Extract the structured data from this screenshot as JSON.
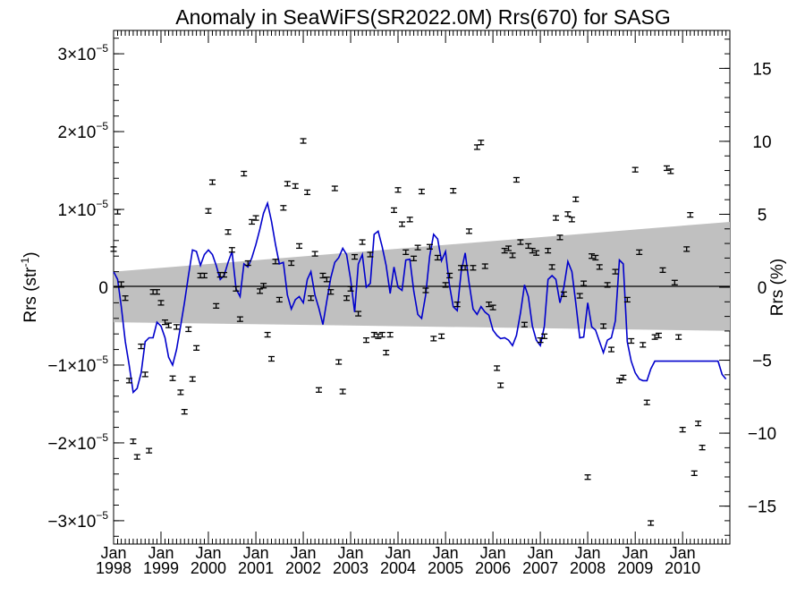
{
  "chart_data": {
    "type": "scatter",
    "title": "Anomaly in SeaWiFS(SR2022.0M) Rrs(670) for SASG",
    "ylabel": "Rrs (str",
    "ylabel_sup": "-1",
    "ylabel_close": ")",
    "y2label": "Rrs (%)",
    "xlim": [
      "1998-01-01",
      "2010-12-31"
    ],
    "ylim": [
      -3.3e-05,
      3.3e-05
    ],
    "y2lim": [
      -17.6,
      17.6
    ],
    "grid": false,
    "legend": "none",
    "colors": {
      "series_line": "#0000cc",
      "points": "#000000",
      "band": "#c0c0c0",
      "zero_line": "#000000"
    },
    "x_ticks": [
      {
        "month": "Jan",
        "year": "1998"
      },
      {
        "month": "Jan",
        "year": "1999"
      },
      {
        "month": "Jan",
        "year": "2000"
      },
      {
        "month": "Jan",
        "year": "2001"
      },
      {
        "month": "Jan",
        "year": "2002"
      },
      {
        "month": "Jan",
        "year": "2003"
      },
      {
        "month": "Jan",
        "year": "2004"
      },
      {
        "month": "Jan",
        "year": "2005"
      },
      {
        "month": "Jan",
        "year": "2006"
      },
      {
        "month": "Jan",
        "year": "2007"
      },
      {
        "month": "Jan",
        "year": "2008"
      },
      {
        "month": "Jan",
        "year": "2009"
      },
      {
        "month": "Jan",
        "year": "2010"
      }
    ],
    "y_ticks": [
      {
        "value": -3e-05,
        "mant": "−3×10",
        "exp": "−5"
      },
      {
        "value": -2e-05,
        "mant": "−2×10",
        "exp": "−5"
      },
      {
        "value": -1e-05,
        "mant": "−1×10",
        "exp": "−5"
      },
      {
        "value": 0,
        "mant": "0",
        "exp": ""
      },
      {
        "value": 1e-05,
        "mant": "1×10",
        "exp": "−5"
      },
      {
        "value": 2e-05,
        "mant": "2×10",
        "exp": "−5"
      },
      {
        "value": 3e-05,
        "mant": "3×10",
        "exp": "−5"
      }
    ],
    "y2_ticks": [
      {
        "value": -15,
        "label": "−15"
      },
      {
        "value": -10,
        "label": "−10"
      },
      {
        "value": -5,
        "label": "−5"
      },
      {
        "value": 0,
        "label": "0"
      },
      {
        "value": 5,
        "label": "5"
      },
      {
        "value": 10,
        "label": "10"
      },
      {
        "value": 15,
        "label": "15"
      }
    ],
    "band": {
      "x": [
        "1998-01-01",
        "2010-12-31"
      ],
      "upper": [
        2e-06,
        8.4e-06
      ],
      "lower": [
        -4.5e-06,
        -5.6e-06
      ]
    },
    "points": [
      {
        "x": "1998-01-01",
        "y": 4.9e-06
      },
      {
        "x": "1998-02-01",
        "y": 9.7e-06
      },
      {
        "x": "1998-03-01",
        "y": 4e-07
      },
      {
        "x": "1998-04-01",
        "y": -1.4e-06
      },
      {
        "x": "1998-05-01",
        "y": -1.2e-05
      },
      {
        "x": "1998-06-01",
        "y": -1.98e-05
      },
      {
        "x": "1998-07-01",
        "y": -2.18e-05
      },
      {
        "x": "1998-08-01",
        "y": -7.6e-06
      },
      {
        "x": "1998-09-01",
        "y": -1.12e-05
      },
      {
        "x": "1998-10-01",
        "y": -2.1e-05
      },
      {
        "x": "1998-11-01",
        "y": -6e-07
      },
      {
        "x": "1998-12-01",
        "y": -6e-07
      },
      {
        "x": "1999-01-01",
        "y": -2e-06
      },
      {
        "x": "1999-02-01",
        "y": -4.5e-06
      },
      {
        "x": "1999-03-01",
        "y": -4.9e-06
      },
      {
        "x": "1999-04-01",
        "y": -1.17e-05
      },
      {
        "x": "1999-05-01",
        "y": -5.1e-06
      },
      {
        "x": "1999-06-01",
        "y": -1.35e-05
      },
      {
        "x": "1999-07-01",
        "y": -1.6e-05
      },
      {
        "x": "1999-08-01",
        "y": -5.4e-06
      },
      {
        "x": "1999-09-01",
        "y": -1.18e-05
      },
      {
        "x": "1999-10-01",
        "y": -7.8e-06
      },
      {
        "x": "1999-11-01",
        "y": 1.5e-06
      },
      {
        "x": "1999-12-01",
        "y": 1.5e-06
      },
      {
        "x": "2000-01-01",
        "y": 9.8e-06
      },
      {
        "x": "2000-02-01",
        "y": 1.35e-05
      },
      {
        "x": "2000-03-01",
        "y": -2.4e-06
      },
      {
        "x": "2000-04-01",
        "y": 1.6e-06
      },
      {
        "x": "2000-05-01",
        "y": 1.6e-06
      },
      {
        "x": "2000-06-01",
        "y": 7.1e-06
      },
      {
        "x": "2000-07-01",
        "y": 4.8e-06
      },
      {
        "x": "2000-08-01",
        "y": -2e-07
      },
      {
        "x": "2000-09-01",
        "y": -4.1e-06
      },
      {
        "x": "2000-10-01",
        "y": 1.46e-05
      },
      {
        "x": "2000-11-01",
        "y": 3.1e-06
      },
      {
        "x": "2000-12-01",
        "y": 8.4e-06
      },
      {
        "x": "2001-01-01",
        "y": 8.9e-06
      },
      {
        "x": "2001-02-01",
        "y": -5e-07
      },
      {
        "x": "2001-03-01",
        "y": 2e-07
      },
      {
        "x": "2001-04-01",
        "y": -6.1e-06
      },
      {
        "x": "2001-05-01",
        "y": -9.2e-06
      },
      {
        "x": "2001-06-01",
        "y": 3.3e-06
      },
      {
        "x": "2001-07-01",
        "y": -1.6e-06
      },
      {
        "x": "2001-08-01",
        "y": 1.02e-05
      },
      {
        "x": "2001-09-01",
        "y": 1.33e-05
      },
      {
        "x": "2001-10-01",
        "y": 3.1e-06
      },
      {
        "x": "2001-11-01",
        "y": 1.3e-05
      },
      {
        "x": "2001-12-01",
        "y": 5.3e-06
      },
      {
        "x": "2002-01-01",
        "y": 1.88e-05
      },
      {
        "x": "2002-02-01",
        "y": 1.22e-05
      },
      {
        "x": "2002-03-01",
        "y": -1.4e-06
      },
      {
        "x": "2002-04-01",
        "y": 4.3e-06
      },
      {
        "x": "2002-05-01",
        "y": -1.32e-05
      },
      {
        "x": "2002-06-01",
        "y": 1.5e-06
      },
      {
        "x": "2002-07-01",
        "y": 1e-06
      },
      {
        "x": "2002-08-01",
        "y": -6e-07
      },
      {
        "x": "2002-09-01",
        "y": 1.27e-05
      },
      {
        "x": "2002-10-01",
        "y": -9.6e-06
      },
      {
        "x": "2002-11-01",
        "y": -1.34e-05
      },
      {
        "x": "2002-12-01",
        "y": -1.4e-06
      },
      {
        "x": "2003-01-01",
        "y": -2e-07
      },
      {
        "x": "2003-02-01",
        "y": 3.9e-06
      },
      {
        "x": "2003-03-01",
        "y": -3.4e-06
      },
      {
        "x": "2003-04-01",
        "y": 5.8e-06
      },
      {
        "x": "2003-05-01",
        "y": -6.8e-06
      },
      {
        "x": "2003-06-01",
        "y": 4.2e-06
      },
      {
        "x": "2003-07-01",
        "y": -6.1e-06
      },
      {
        "x": "2003-08-01",
        "y": -6.3e-06
      },
      {
        "x": "2003-09-01",
        "y": -6.1e-06
      },
      {
        "x": "2003-10-01",
        "y": -8.4e-06
      },
      {
        "x": "2003-11-01",
        "y": -6.1e-06
      },
      {
        "x": "2003-12-01",
        "y": 9.9e-06
      },
      {
        "x": "2004-01-01",
        "y": 1.25e-05
      },
      {
        "x": "2004-02-01",
        "y": 8.1e-06
      },
      {
        "x": "2004-03-01",
        "y": 4.5e-06
      },
      {
        "x": "2004-04-01",
        "y": 8.7e-06
      },
      {
        "x": "2004-05-01",
        "y": 3.7e-06
      },
      {
        "x": "2004-06-01",
        "y": 5.1e-06
      },
      {
        "x": "2004-07-01",
        "y": 1.23e-05
      },
      {
        "x": "2004-08-01",
        "y": -4e-07
      },
      {
        "x": "2004-09-01",
        "y": 5.2e-06
      },
      {
        "x": "2004-10-01",
        "y": -6.6e-06
      },
      {
        "x": "2004-11-01",
        "y": 3.8e-06
      },
      {
        "x": "2004-12-01",
        "y": -6.3e-06
      },
      {
        "x": "2005-01-01",
        "y": 3e-07
      },
      {
        "x": "2005-02-01",
        "y": 1.5e-06
      },
      {
        "x": "2005-03-01",
        "y": 1.24e-05
      },
      {
        "x": "2005-04-01",
        "y": -2.2e-06
      },
      {
        "x": "2005-05-01",
        "y": 2.5e-06
      },
      {
        "x": "2005-06-01",
        "y": 2.5e-06
      },
      {
        "x": "2005-07-01",
        "y": 7.2e-06
      },
      {
        "x": "2005-08-01",
        "y": 2.5e-06
      },
      {
        "x": "2005-09-01",
        "y": 1.8e-05
      },
      {
        "x": "2005-10-01",
        "y": 1.86e-05
      },
      {
        "x": "2005-11-01",
        "y": 2.7e-06
      },
      {
        "x": "2005-12-01",
        "y": -2.2e-06
      },
      {
        "x": "2006-01-01",
        "y": -2.6e-06
      },
      {
        "x": "2006-02-01",
        "y": -1.04e-05
      },
      {
        "x": "2006-03-01",
        "y": -1.26e-05
      },
      {
        "x": "2006-04-01",
        "y": 4.7e-06
      },
      {
        "x": "2006-05-01",
        "y": 5e-06
      },
      {
        "x": "2006-06-01",
        "y": 4.1e-06
      },
      {
        "x": "2006-07-01",
        "y": 1.38e-05
      },
      {
        "x": "2006-08-01",
        "y": 5.8e-06
      },
      {
        "x": "2006-09-01",
        "y": -4.8e-06
      },
      {
        "x": "2006-10-01",
        "y": 5.3e-06
      },
      {
        "x": "2006-11-01",
        "y": 4.7e-06
      },
      {
        "x": "2006-12-01",
        "y": 4.4e-06
      },
      {
        "x": "2007-01-01",
        "y": -6.8e-06
      },
      {
        "x": "2007-02-01",
        "y": -6.3e-06
      },
      {
        "x": "2007-03-01",
        "y": 4.7e-06
      },
      {
        "x": "2007-04-01",
        "y": 2.6e-06
      },
      {
        "x": "2007-05-01",
        "y": 8.9e-06
      },
      {
        "x": "2007-06-01",
        "y": 6.4e-06
      },
      {
        "x": "2007-07-01",
        "y": -9e-07
      },
      {
        "x": "2007-08-01",
        "y": 9.4e-06
      },
      {
        "x": "2007-09-01",
        "y": 8.7e-06
      },
      {
        "x": "2007-10-01",
        "y": 1.13e-05
      },
      {
        "x": "2007-11-01",
        "y": -1.1e-06
      },
      {
        "x": "2007-12-01",
        "y": 5e-07
      },
      {
        "x": "2008-01-01",
        "y": -2.44e-05
      },
      {
        "x": "2008-02-01",
        "y": 4e-06
      },
      {
        "x": "2008-03-01",
        "y": 3.8e-06
      },
      {
        "x": "2008-04-01",
        "y": 2.6e-06
      },
      {
        "x": "2008-05-01",
        "y": -5e-06
      },
      {
        "x": "2008-06-01",
        "y": 3e-07
      },
      {
        "x": "2008-07-01",
        "y": -8e-06
      },
      {
        "x": "2008-08-01",
        "y": 2e-06
      },
      {
        "x": "2008-09-01",
        "y": -1.2e-05
      },
      {
        "x": "2008-10-01",
        "y": -1.16e-05
      },
      {
        "x": "2008-11-01",
        "y": -1.6e-06
      },
      {
        "x": "2008-12-01",
        "y": -6.9e-06
      },
      {
        "x": "2009-01-01",
        "y": 1.51e-05
      },
      {
        "x": "2009-02-01",
        "y": 4.5e-06
      },
      {
        "x": "2009-03-01",
        "y": -7.4e-06
      },
      {
        "x": "2009-04-01",
        "y": -1.48e-05
      },
      {
        "x": "2009-05-01",
        "y": -3.03e-05
      },
      {
        "x": "2009-06-01",
        "y": -6.4e-06
      },
      {
        "x": "2009-07-01",
        "y": -6.2e-06
      },
      {
        "x": "2009-08-01",
        "y": 2.2e-06
      },
      {
        "x": "2009-09-01",
        "y": 1.53e-05
      },
      {
        "x": "2009-10-01",
        "y": 1.49e-05
      },
      {
        "x": "2009-11-01",
        "y": 6e-07
      },
      {
        "x": "2009-12-01",
        "y": -6.4e-06
      },
      {
        "x": "2010-01-01",
        "y": -1.83e-05
      },
      {
        "x": "2010-02-01",
        "y": 4.9e-06
      },
      {
        "x": "2010-03-01",
        "y": 9.3e-06
      },
      {
        "x": "2010-04-01",
        "y": -2.39e-05
      },
      {
        "x": "2010-05-01",
        "y": -1.75e-05
      },
      {
        "x": "2010-06-01",
        "y": -2.06e-05
      }
    ],
    "smooth": {
      "x": [
        "1998-01-01",
        "1998-02-01",
        "1998-03-01",
        "1998-04-01",
        "1998-05-01",
        "1998-06-01",
        "1998-07-01",
        "1998-08-01",
        "1998-09-01",
        "1998-10-01",
        "1998-11-01",
        "1998-12-01",
        "1999-01-01",
        "1999-02-01",
        "1999-03-01",
        "1999-04-01",
        "1999-05-01",
        "1999-06-01",
        "1999-07-01",
        "1999-08-01",
        "1999-09-01",
        "1999-10-01",
        "1999-11-01",
        "1999-12-01",
        "2000-01-01",
        "2000-02-01",
        "2000-03-01",
        "2000-04-01",
        "2000-05-01",
        "2000-06-01",
        "2000-07-01",
        "2000-08-01",
        "2000-09-01",
        "2000-10-01",
        "2000-11-01",
        "2000-12-01",
        "2001-01-01",
        "2001-02-01",
        "2001-03-01",
        "2001-04-01",
        "2001-05-01",
        "2001-06-01",
        "2001-07-01",
        "2001-08-01",
        "2001-09-01",
        "2001-10-01",
        "2001-11-01",
        "2001-12-01",
        "2002-01-01",
        "2002-02-01",
        "2002-03-01",
        "2002-04-01",
        "2002-05-01",
        "2002-06-01",
        "2002-07-01",
        "2002-08-01",
        "2002-09-01",
        "2002-10-01",
        "2002-11-01",
        "2002-12-01",
        "2003-01-01",
        "2003-02-01",
        "2003-03-01",
        "2003-04-01",
        "2003-05-01",
        "2003-06-01",
        "2003-07-01",
        "2003-08-01",
        "2003-09-01",
        "2003-10-01",
        "2003-11-01",
        "2003-12-01",
        "2004-01-01",
        "2004-02-01",
        "2004-03-01",
        "2004-04-01",
        "2004-05-01",
        "2004-06-01",
        "2004-07-01",
        "2004-08-01",
        "2004-09-01",
        "2004-10-01",
        "2004-11-01",
        "2004-12-01",
        "2005-01-01",
        "2005-02-01",
        "2005-03-01",
        "2005-04-01",
        "2005-05-01",
        "2005-06-01",
        "2005-07-01",
        "2005-08-01",
        "2005-09-01",
        "2005-10-01",
        "2005-11-01",
        "2005-12-01",
        "2006-01-01",
        "2006-02-01",
        "2006-03-01",
        "2006-04-01",
        "2006-05-01",
        "2006-06-01",
        "2006-07-01",
        "2006-08-01",
        "2006-09-01",
        "2006-10-01",
        "2006-11-01",
        "2006-12-01",
        "2007-01-01",
        "2007-02-01",
        "2007-03-01",
        "2007-04-01",
        "2007-05-01",
        "2007-06-01",
        "2007-07-01",
        "2007-08-01",
        "2007-09-01",
        "2007-10-01",
        "2007-11-01",
        "2007-12-01",
        "2008-01-01",
        "2008-02-01",
        "2008-03-01",
        "2008-04-01",
        "2008-05-01",
        "2008-06-01",
        "2008-07-01",
        "2008-08-01",
        "2008-09-01",
        "2008-10-01",
        "2008-11-01",
        "2008-12-01",
        "2009-01-01",
        "2009-02-01",
        "2009-03-01",
        "2009-04-01",
        "2009-05-01",
        "2009-06-01",
        "2009-07-01",
        "2009-08-01",
        "2009-09-01",
        "2009-10-01",
        "2009-11-01",
        "2009-12-01",
        "2010-01-01",
        "2010-02-01",
        "2010-03-01",
        "2010-04-01",
        "2010-05-01",
        "2010-06-01",
        "2010-07-01",
        "2010-08-01",
        "2010-09-01",
        "2010-10-01",
        "2010-11-01",
        "2010-12-01"
      ],
      "y": [
        2e-06,
        1e-06,
        -2.5e-06,
        -7e-06,
        -1e-05,
        -1.35e-05,
        -1.3e-05,
        -1.1e-05,
        -7e-06,
        -6.5e-06,
        -6.5e-06,
        -4.5e-06,
        -5e-06,
        -6.5e-06,
        -9e-06,
        -1e-05,
        -8e-06,
        -5e-06,
        -2e-06,
        1.5e-06,
        4.8e-06,
        4.6e-06,
        2.8e-06,
        4.2e-06,
        4.8e-06,
        4.2e-06,
        2.8e-06,
        1e-06,
        1.5e-06,
        3.2e-06,
        4.6e-06,
        -2e-07,
        -1.2e-06,
        3e-06,
        2.6e-06,
        3.8e-06,
        5.5e-06,
        7.5e-06,
        9.5e-06,
        1.08e-05,
        8.5e-06,
        5.5e-06,
        3e-06,
        3.2e-06,
        -1e-06,
        -2.8e-06,
        -1.6e-06,
        -1.2e-06,
        -2e-06,
        1e-06,
        2e-06,
        -1e-06,
        -2.7e-06,
        -4.8e-06,
        -1.8e-06,
        1.2e-06,
        3.2e-06,
        3.8e-06,
        5e-06,
        4.2e-06,
        1e-06,
        -3.2e-06,
        3e-06,
        4.2e-06,
        0,
        5e-07,
        6.8e-06,
        7.2e-06,
        5.2e-06,
        2.8e-06,
        -8e-07,
        2.6e-06,
        0,
        -4e-07,
        3.5e-06,
        3.6e-06,
        -5e-07,
        -3.5e-06,
        -4e-06,
        -1e-06,
        4e-06,
        6.8e-06,
        6.2e-06,
        3.4e-06,
        4.6e-06,
        2e-07,
        -2.5e-06,
        -3e-06,
        2e-06,
        4.4e-06,
        6e-07,
        -2.8e-06,
        -3.5e-06,
        -2.5e-06,
        -3.2e-06,
        -3.6e-06,
        -5.5e-06,
        -6.2e-06,
        -6.6e-06,
        -6.5e-06,
        -6.8e-06,
        -7.5e-06,
        -6.2e-06,
        -3.3e-06,
        3e-07,
        -1.2e-06,
        -5e-06,
        -6.8e-06,
        -7.5e-06,
        -5e-06,
        1e-06,
        1.5e-06,
        1e-06,
        -2e-06,
        0,
        3.3e-06,
        2e-06,
        -2e-06,
        -6.5e-06,
        -6.4e-06,
        -2e-06,
        -5.1e-06,
        -5.5e-06,
        -7e-06,
        -8.4e-06,
        -6.8e-06,
        -6.5e-06,
        -4.3e-06,
        3.5e-06,
        3e-06,
        -7e-06,
        -9.5e-06,
        -1.1e-05,
        -1.18e-05,
        -1.2e-05,
        -1.2e-05,
        -1.05e-05,
        -9.5e-06,
        -9.5e-06,
        -9.5e-06,
        -9.5e-06,
        -9.5e-06,
        -9.5e-06,
        -9.5e-06,
        -9.5e-06,
        -9.5e-06,
        -9.5e-06,
        -9.5e-06,
        -9.5e-06,
        -9.5e-06,
        -9.5e-06,
        -9.5e-06,
        -9.5e-06,
        -9.5e-06,
        -1.12e-05,
        -1.18e-05
      ]
    }
  }
}
